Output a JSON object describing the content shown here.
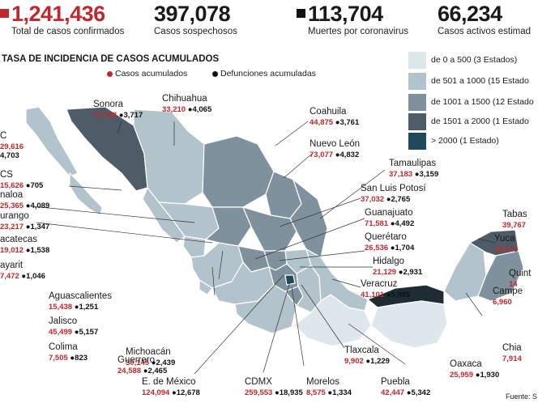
{
  "header": {
    "stats": [
      {
        "value": "1,241,436",
        "label": "Total de casos confirmados",
        "color": "#c0282e"
      },
      {
        "value": "397,078",
        "label": "Casos sospechosos"
      },
      {
        "value": "113,704",
        "label": "Muertes por coronavirus",
        "color": "#111111"
      },
      {
        "value": "66,234",
        "label": "Casos activos estimad"
      }
    ]
  },
  "map_title": "TASA DE INCIDENCIA DE CASOS ACUMULADOS",
  "legend": {
    "cases": "Casos acumulados",
    "deaths": "Defunciones acumuladas",
    "case_color": "#c0282e",
    "death_color": "#111111"
  },
  "scale": [
    {
      "label": "de 0 a 500 (3 Estados)",
      "color": "#dde7ec"
    },
    {
      "label": "de 501 a 1000 (15 Estado",
      "color": "#b3c3cc"
    },
    {
      "label": "de 1001 a 1500 (12 Estado",
      "color": "#7f919c"
    },
    {
      "label": "de 1501 a 2000 (1 Estado",
      "color": "#4d5c66"
    },
    {
      "label": "> 2000 (1 Estado)",
      "color": "#1e4a5a"
    }
  ],
  "states": [
    {
      "name": "C",
      "cases": "29,616",
      "deaths": "4,703"
    },
    {
      "name": "CS",
      "cases": "15,626",
      "deaths": "705"
    },
    {
      "name": "naloa",
      "cases": "25,365",
      "deaths": "4,089"
    },
    {
      "name": "urango",
      "cases": "23,217",
      "deaths": "1,347"
    },
    {
      "name": "acatecas",
      "cases": "19,012",
      "deaths": "1,538"
    },
    {
      "name": "ayarit",
      "cases": "7,472",
      "deaths": "1,046"
    },
    {
      "name": "Aguascalientes",
      "cases": "15,438",
      "deaths": "1,251"
    },
    {
      "name": "Jalisco",
      "cases": "45,499",
      "deaths": "5,157"
    },
    {
      "name": "Colima",
      "cases": "7,505",
      "deaths": "823"
    },
    {
      "name": "Michoacán",
      "cases": "30,145",
      "deaths": "2,439"
    },
    {
      "name": "Guerrero",
      "cases": "24,588",
      "deaths": "2,465"
    },
    {
      "name": "E. de México",
      "cases": "124,094",
      "deaths": "12,678"
    },
    {
      "name": "CDMX",
      "cases": "259,553",
      "deaths": "18,935"
    },
    {
      "name": "Morelos",
      "cases": "8,575",
      "deaths": "1,334"
    },
    {
      "name": "Puebla",
      "cases": "42,447",
      "deaths": "5,342"
    },
    {
      "name": "Oaxaca",
      "cases": "25,959",
      "deaths": "1,930"
    },
    {
      "name": "Tlaxcala",
      "cases": "9,902",
      "deaths": "1,229"
    },
    {
      "name": "Veracruz",
      "cases": "41,101",
      "deaths": "5,985"
    },
    {
      "name": "Hidalgo",
      "cases": "21,129",
      "deaths": "2,931"
    },
    {
      "name": "Querétaro",
      "cases": "26,536",
      "deaths": "1,704"
    },
    {
      "name": "Guanajuato",
      "cases": "71,581",
      "deaths": "4,492"
    },
    {
      "name": "San Luis Potosí",
      "cases": "37,032",
      "deaths": "2,765"
    },
    {
      "name": "Tamaulipas",
      "cases": "37,183",
      "deaths": "3,159"
    },
    {
      "name": "Nuevo León",
      "cases": "73,077",
      "deaths": "4,832"
    },
    {
      "name": "Coahuila",
      "cases": "44,875",
      "deaths": "3,761"
    },
    {
      "name": "Chihuahua",
      "cases": "33,210",
      "deaths": "4,065"
    },
    {
      "name": "Sonora",
      "cases": "47,008",
      "deaths": "3,717"
    },
    {
      "name": "Tabas",
      "cases": "39,767",
      "deaths": ""
    },
    {
      "name": "Yuca",
      "cases": "25,073",
      "deaths": ""
    },
    {
      "name": "Quint",
      "cases": "14",
      "deaths": ""
    },
    {
      "name": "Campe",
      "cases": "6,960",
      "deaths": ""
    },
    {
      "name": "Chia",
      "cases": "7,914",
      "deaths": ""
    }
  ],
  "source": "Fuente: S"
}
